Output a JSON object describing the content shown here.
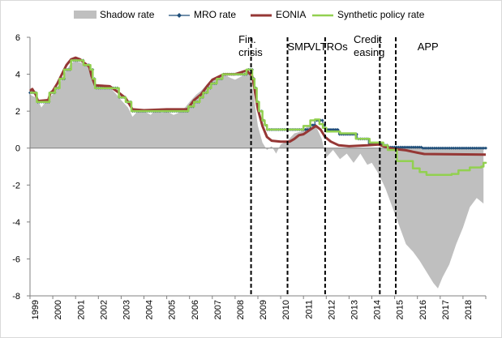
{
  "chart_data": {
    "type": "line",
    "title": "",
    "xlabel": "",
    "ylabel": "",
    "xlim": [
      1999.0,
      2019.0
    ],
    "ylim": [
      -8,
      6
    ],
    "yticks": [
      -8,
      -6,
      -4,
      -2,
      0,
      2,
      4,
      6
    ],
    "xticks": [
      "1999",
      "2000",
      "2001",
      "2002",
      "2003",
      "2004",
      "2005",
      "2006",
      "2007",
      "2008",
      "2009",
      "2010",
      "2011",
      "2012",
      "2013",
      "2014",
      "2015",
      "2016",
      "2017",
      "2018"
    ],
    "legend_position": "top",
    "colors": {
      "shadow": "#bfbfbf",
      "mro": "#1f4e79",
      "eonia": "#953735",
      "synthetic": "#92d050",
      "zero_line": "#808080",
      "event_line": "#000000"
    },
    "series": [
      {
        "name": "Shadow rate",
        "style": "area",
        "points": [
          [
            1999.0,
            2.9
          ],
          [
            1999.3,
            2.7
          ],
          [
            1999.5,
            2.2
          ],
          [
            1999.8,
            2.7
          ],
          [
            2000.0,
            2.9
          ],
          [
            2000.3,
            3.5
          ],
          [
            2000.5,
            4.0
          ],
          [
            2000.8,
            4.6
          ],
          [
            2001.0,
            4.7
          ],
          [
            2001.3,
            4.6
          ],
          [
            2001.5,
            4.5
          ],
          [
            2001.8,
            3.7
          ],
          [
            2002.0,
            3.3
          ],
          [
            2002.3,
            3.4
          ],
          [
            2002.5,
            3.3
          ],
          [
            2002.8,
            2.9
          ],
          [
            2003.0,
            2.6
          ],
          [
            2003.3,
            2.2
          ],
          [
            2003.5,
            1.7
          ],
          [
            2003.8,
            2.1
          ],
          [
            2004.0,
            2.0
          ],
          [
            2004.3,
            1.8
          ],
          [
            2004.5,
            2.1
          ],
          [
            2004.8,
            1.9
          ],
          [
            2005.0,
            2.0
          ],
          [
            2005.3,
            1.8
          ],
          [
            2005.5,
            1.9
          ],
          [
            2005.8,
            2.2
          ],
          [
            2006.0,
            2.5
          ],
          [
            2006.3,
            2.9
          ],
          [
            2006.5,
            3.1
          ],
          [
            2006.8,
            3.5
          ],
          [
            2007.0,
            3.7
          ],
          [
            2007.3,
            3.9
          ],
          [
            2007.5,
            4.0
          ],
          [
            2007.8,
            3.8
          ],
          [
            2008.0,
            3.7
          ],
          [
            2008.3,
            3.9
          ],
          [
            2008.6,
            4.3
          ],
          [
            2008.8,
            3.0
          ],
          [
            2009.0,
            1.2
          ],
          [
            2009.2,
            0.3
          ],
          [
            2009.4,
            -0.1
          ],
          [
            2009.6,
            0.1
          ],
          [
            2009.8,
            -0.3
          ],
          [
            2010.0,
            0.2
          ],
          [
            2010.3,
            0.4
          ],
          [
            2010.6,
            0.8
          ],
          [
            2010.9,
            0.9
          ],
          [
            2011.2,
            1.2
          ],
          [
            2011.5,
            1.3
          ],
          [
            2011.8,
            0.5
          ],
          [
            2012.0,
            -0.5
          ],
          [
            2012.3,
            -0.1
          ],
          [
            2012.6,
            -0.6
          ],
          [
            2012.9,
            -0.3
          ],
          [
            2013.2,
            -0.8
          ],
          [
            2013.5,
            -0.3
          ],
          [
            2013.8,
            -0.9
          ],
          [
            2014.0,
            -0.8
          ],
          [
            2014.3,
            -1.4
          ],
          [
            2014.6,
            -2.2
          ],
          [
            2014.9,
            -3.2
          ],
          [
            2015.2,
            -4.2
          ],
          [
            2015.5,
            -5.2
          ],
          [
            2015.8,
            -5.6
          ],
          [
            2016.1,
            -6.1
          ],
          [
            2016.4,
            -6.7
          ],
          [
            2016.7,
            -7.3
          ],
          [
            2016.9,
            -7.6
          ],
          [
            2017.1,
            -7.0
          ],
          [
            2017.4,
            -6.3
          ],
          [
            2017.7,
            -5.2
          ],
          [
            2018.0,
            -4.3
          ],
          [
            2018.3,
            -3.2
          ],
          [
            2018.6,
            -2.7
          ],
          [
            2018.9,
            -3.0
          ]
        ]
      },
      {
        "name": "MRO rate",
        "style": "step-markers",
        "points": [
          [
            1999.0,
            3.0
          ],
          [
            1999.3,
            2.5
          ],
          [
            1999.85,
            3.0
          ],
          [
            2000.1,
            3.25
          ],
          [
            2000.3,
            3.75
          ],
          [
            2000.5,
            4.25
          ],
          [
            2000.8,
            4.75
          ],
          [
            2001.35,
            4.5
          ],
          [
            2001.65,
            4.25
          ],
          [
            2001.75,
            3.75
          ],
          [
            2001.85,
            3.25
          ],
          [
            2002.9,
            2.75
          ],
          [
            2003.2,
            2.5
          ],
          [
            2003.45,
            2.0
          ],
          [
            2005.95,
            2.25
          ],
          [
            2006.2,
            2.5
          ],
          [
            2006.45,
            2.75
          ],
          [
            2006.6,
            3.0
          ],
          [
            2006.8,
            3.25
          ],
          [
            2006.95,
            3.5
          ],
          [
            2007.2,
            3.75
          ],
          [
            2007.45,
            4.0
          ],
          [
            2008.5,
            4.25
          ],
          [
            2008.75,
            3.75
          ],
          [
            2008.85,
            3.25
          ],
          [
            2008.95,
            2.5
          ],
          [
            2009.05,
            2.0
          ],
          [
            2009.2,
            1.5
          ],
          [
            2009.3,
            1.25
          ],
          [
            2009.4,
            1.0
          ],
          [
            2011.3,
            1.25
          ],
          [
            2011.5,
            1.5
          ],
          [
            2011.85,
            1.25
          ],
          [
            2011.95,
            1.0
          ],
          [
            2012.55,
            0.75
          ],
          [
            2013.35,
            0.5
          ],
          [
            2013.85,
            0.25
          ],
          [
            2014.45,
            0.15
          ],
          [
            2014.7,
            0.05
          ],
          [
            2016.2,
            0.0
          ],
          [
            2019.0,
            0.0
          ]
        ]
      },
      {
        "name": "EONIA",
        "style": "line",
        "points": [
          [
            1999.0,
            3.1
          ],
          [
            1999.1,
            3.2
          ],
          [
            1999.25,
            2.9
          ],
          [
            1999.35,
            2.55
          ],
          [
            1999.8,
            2.6
          ],
          [
            1999.9,
            3.0
          ],
          [
            2000.0,
            3.1
          ],
          [
            2000.2,
            3.5
          ],
          [
            2000.4,
            4.0
          ],
          [
            2000.6,
            4.5
          ],
          [
            2000.8,
            4.8
          ],
          [
            2001.0,
            4.9
          ],
          [
            2001.2,
            4.8
          ],
          [
            2001.4,
            4.6
          ],
          [
            2001.6,
            4.4
          ],
          [
            2001.7,
            3.9
          ],
          [
            2001.85,
            3.4
          ],
          [
            2002.5,
            3.35
          ],
          [
            2002.9,
            3.0
          ],
          [
            2003.2,
            2.7
          ],
          [
            2003.5,
            2.1
          ],
          [
            2004.0,
            2.05
          ],
          [
            2005.0,
            2.1
          ],
          [
            2005.9,
            2.1
          ],
          [
            2006.2,
            2.6
          ],
          [
            2006.5,
            2.9
          ],
          [
            2006.8,
            3.4
          ],
          [
            2007.0,
            3.7
          ],
          [
            2007.5,
            4.0
          ],
          [
            2008.0,
            4.0
          ],
          [
            2008.5,
            4.2
          ],
          [
            2008.75,
            3.9
          ],
          [
            2008.85,
            3.2
          ],
          [
            2009.0,
            2.1
          ],
          [
            2009.2,
            1.2
          ],
          [
            2009.4,
            0.6
          ],
          [
            2009.6,
            0.4
          ],
          [
            2010.0,
            0.35
          ],
          [
            2010.4,
            0.35
          ],
          [
            2010.6,
            0.5
          ],
          [
            2010.8,
            0.7
          ],
          [
            2011.0,
            0.75
          ],
          [
            2011.3,
            1.0
          ],
          [
            2011.55,
            1.2
          ],
          [
            2011.75,
            1.0
          ],
          [
            2011.95,
            0.6
          ],
          [
            2012.2,
            0.35
          ],
          [
            2012.55,
            0.15
          ],
          [
            2013.0,
            0.1
          ],
          [
            2013.8,
            0.15
          ],
          [
            2014.3,
            0.2
          ],
          [
            2014.5,
            0.1
          ],
          [
            2014.8,
            0.0
          ],
          [
            2015.0,
            -0.05
          ],
          [
            2015.5,
            -0.12
          ],
          [
            2016.0,
            -0.25
          ],
          [
            2016.3,
            -0.32
          ],
          [
            2019.0,
            -0.35
          ]
        ]
      },
      {
        "name": "Synthetic policy rate",
        "style": "line",
        "points": [
          [
            1999.0,
            3.0
          ],
          [
            1999.3,
            2.5
          ],
          [
            1999.85,
            3.0
          ],
          [
            2000.1,
            3.25
          ],
          [
            2000.3,
            3.75
          ],
          [
            2000.5,
            4.25
          ],
          [
            2000.8,
            4.75
          ],
          [
            2001.35,
            4.5
          ],
          [
            2001.65,
            4.25
          ],
          [
            2001.75,
            3.75
          ],
          [
            2001.85,
            3.25
          ],
          [
            2002.9,
            2.75
          ],
          [
            2003.2,
            2.5
          ],
          [
            2003.45,
            2.0
          ],
          [
            2005.95,
            2.25
          ],
          [
            2006.2,
            2.5
          ],
          [
            2006.45,
            2.75
          ],
          [
            2006.6,
            3.0
          ],
          [
            2006.8,
            3.25
          ],
          [
            2006.95,
            3.5
          ],
          [
            2007.2,
            3.75
          ],
          [
            2007.45,
            4.0
          ],
          [
            2008.5,
            4.25
          ],
          [
            2008.75,
            3.75
          ],
          [
            2008.85,
            3.25
          ],
          [
            2008.95,
            2.5
          ],
          [
            2009.05,
            2.0
          ],
          [
            2009.2,
            1.5
          ],
          [
            2009.3,
            1.25
          ],
          [
            2009.4,
            1.0
          ],
          [
            2010.0,
            1.0
          ],
          [
            2010.8,
            1.0
          ],
          [
            2011.0,
            1.2
          ],
          [
            2011.3,
            1.5
          ],
          [
            2011.5,
            1.55
          ],
          [
            2011.7,
            1.3
          ],
          [
            2011.85,
            1.1
          ],
          [
            2012.0,
            0.9
          ],
          [
            2012.6,
            0.8
          ],
          [
            2013.3,
            0.5
          ],
          [
            2013.9,
            0.3
          ],
          [
            2014.5,
            0.15
          ],
          [
            2014.7,
            -0.1
          ],
          [
            2015.1,
            -0.7
          ],
          [
            2015.8,
            -1.1
          ],
          [
            2016.1,
            -1.3
          ],
          [
            2016.4,
            -1.45
          ],
          [
            2017.5,
            -1.4
          ],
          [
            2017.8,
            -1.2
          ],
          [
            2018.3,
            -1.05
          ],
          [
            2018.8,
            -1.0
          ],
          [
            2018.9,
            -0.8
          ],
          [
            2019.0,
            -0.75
          ]
        ]
      }
    ],
    "events": [
      {
        "x": 2008.7,
        "label": "Fin. crisis"
      },
      {
        "x": 2010.3,
        "label": "SMP"
      },
      {
        "x": 2011.95,
        "label": "VLTROs"
      },
      {
        "x": 2014.35,
        "label": "Credit easing"
      },
      {
        "x": 2015.05,
        "label": "APP"
      }
    ],
    "annotations": [
      {
        "key": "fin_crisis",
        "lines": [
          "Fin.",
          "crisis"
        ],
        "x": 2008.15,
        "y": 5.7
      },
      {
        "key": "smp",
        "lines": [
          "SMP"
        ],
        "x": 2010.3,
        "y": 5.3
      },
      {
        "key": "vltros",
        "lines": [
          "VLTROs"
        ],
        "x": 2011.2,
        "y": 5.3
      },
      {
        "key": "credit_easing",
        "lines": [
          "Credit",
          "easing"
        ],
        "x": 2013.2,
        "y": 5.7
      },
      {
        "key": "app",
        "lines": [
          "APP"
        ],
        "x": 2016.0,
        "y": 5.3
      }
    ]
  }
}
